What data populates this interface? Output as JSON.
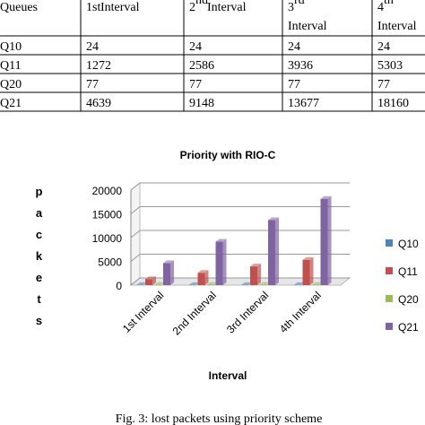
{
  "table": {
    "header": [
      "Queues",
      [
        "1st",
        " Interval"
      ],
      [
        "2",
        "nd",
        " Interval"
      ],
      [
        "3",
        "rd",
        "Interval"
      ],
      [
        "4",
        "th",
        "Interval"
      ]
    ],
    "rows": [
      [
        "Q10",
        "24",
        "24",
        "24",
        "24"
      ],
      [
        "Q11",
        "1272",
        "2586",
        "3936",
        "5303"
      ],
      [
        "Q20",
        "77",
        "77",
        "77",
        "77"
      ],
      [
        "Q21",
        "4639",
        "9148",
        "13677",
        "18160"
      ]
    ]
  },
  "chart_data": {
    "type": "bar3d",
    "title": "Priority with RIO-C",
    "y_label": "packets",
    "x_label": "Interval",
    "categories": [
      "1st Interval",
      "2nd Interval",
      "3rd Interval",
      "4th Interval"
    ],
    "series": [
      {
        "name": "Q10",
        "color": "#4f81bd",
        "values": [
          24,
          24,
          24,
          24
        ]
      },
      {
        "name": "Q11",
        "color": "#c0504d",
        "values": [
          1272,
          2586,
          3936,
          5303
        ]
      },
      {
        "name": "Q20",
        "color": "#9bbb59",
        "values": [
          77,
          77,
          77,
          77
        ]
      },
      {
        "name": "Q21",
        "color": "#8064a2",
        "values": [
          4639,
          9148,
          13677,
          18160
        ]
      }
    ],
    "ylim": [
      0,
      20000
    ],
    "yticks": [
      0,
      5000,
      10000,
      15000,
      20000
    ],
    "grid": true,
    "legend": "right"
  },
  "caption": "Fig. 3: lost packets using priority scheme"
}
